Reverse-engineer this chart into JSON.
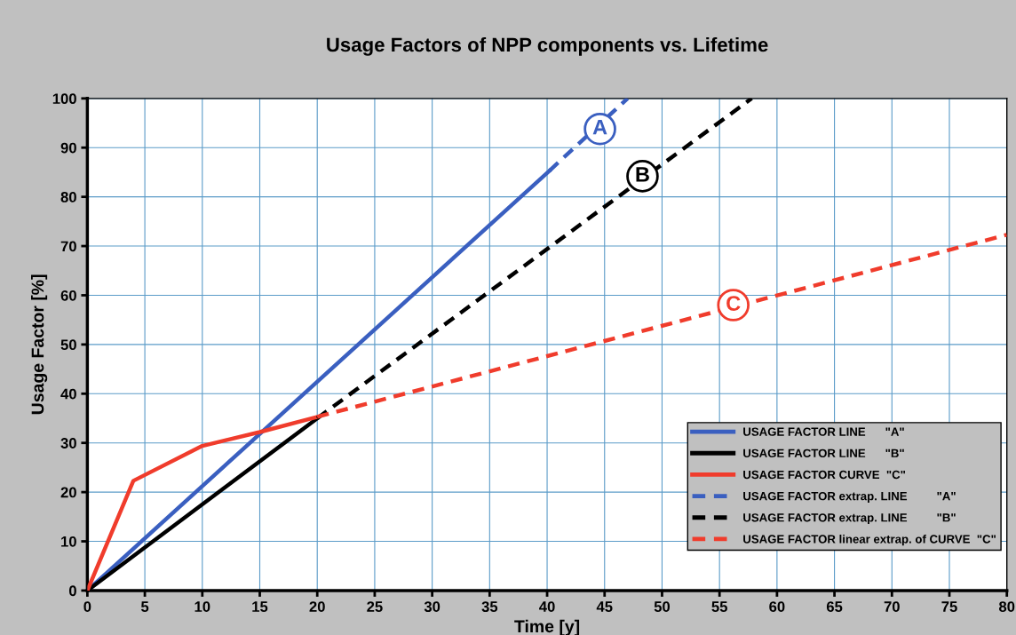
{
  "chart_data": {
    "type": "line",
    "title": "Usage Factors of NPP components vs. Lifetime",
    "xlabel": "Time [y]",
    "ylabel": "Usage Factor [%]",
    "series": [
      {
        "name": "USAGE FACTOR LINE      \"A\"",
        "color": "#3a5fc0",
        "x": [
          0,
          40.2
        ],
        "values": [
          0,
          85.3
        ],
        "line_style": "solid"
      },
      {
        "name": "USAGE FACTOR LINE      \"B\"",
        "color": "#000000",
        "x": [
          0,
          20
        ],
        "values": [
          0,
          35
        ],
        "line_style": "solid"
      },
      {
        "name": "USAGE FACTOR CURVE  \"C\"",
        "color": "#f03c2c",
        "x": [
          0,
          4,
          10,
          15,
          20
        ],
        "values": [
          0,
          22.3,
          29.4,
          32.2,
          35.3
        ],
        "line_style": "solid"
      },
      {
        "name": "USAGE FACTOR extrap. LINE         \"A\"",
        "color": "#3a5fc0",
        "x": [
          40.2,
          47
        ],
        "values": [
          85.3,
          100
        ],
        "line_style": "dashed"
      },
      {
        "name": "USAGE FACTOR extrap. LINE         \"B\"",
        "color": "#000000",
        "x": [
          20,
          57.8
        ],
        "values": [
          35,
          100
        ],
        "line_style": "dashed"
      },
      {
        "name": "USAGE FACTOR linear extrap. of CURVE  \"C\"",
        "color": "#f03c2c",
        "x": [
          20,
          80
        ],
        "values": [
          35.3,
          72.3
        ],
        "line_style": "dashed"
      }
    ],
    "annotations": [
      {
        "text": "A",
        "x": 44.6,
        "y": 93.8
      },
      {
        "text": "B",
        "x": 48.3,
        "y": 84.2
      },
      {
        "text": "C",
        "x": 56.2,
        "y": 58.0
      }
    ],
    "xlim": [
      0,
      80
    ],
    "xticks": [
      0,
      5,
      10,
      15,
      20,
      25,
      30,
      35,
      40,
      45,
      50,
      55,
      60,
      65,
      70,
      75,
      80
    ],
    "ylim": [
      0,
      100
    ],
    "yticks": [
      0,
      10,
      20,
      30,
      40,
      50,
      60,
      70,
      80,
      90,
      100
    ],
    "grid": true,
    "legend": "bottom right",
    "marker": "none"
  }
}
